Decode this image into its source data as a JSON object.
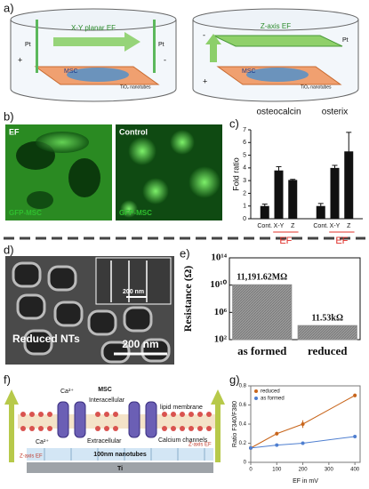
{
  "panel_labels": [
    "a)",
    "b)",
    "c)",
    "d)",
    "e)",
    "f)",
    "g)"
  ],
  "panel_a": {
    "left": {
      "title": "X-Y planar EF",
      "electrode_left": "Pt",
      "electrode_right": "Pt",
      "pole_left": "+",
      "pole_right": "-",
      "cells": "MSC",
      "substrate": "TiO₂ nanotubes"
    },
    "right": {
      "title": "Z-axis EF",
      "electrode": "Pt",
      "pole_top": "-",
      "pole_bottom": "+",
      "cells": "MSC",
      "substrate": "TiO₂ nanotubes"
    }
  },
  "panel_b": {
    "images": [
      {
        "tag": "EF",
        "caption": "GFP-MSC"
      },
      {
        "tag": "Control",
        "caption": "GFP-MSC"
      }
    ]
  },
  "panel_d": {
    "label": "Reduced NTs",
    "scale": "200 nm",
    "inset_scale": "200 nm"
  },
  "panel_f": {
    "cell": "MSC",
    "ion_top": "Ca²⁺",
    "ion_bottom": "Ca²⁺",
    "inside": "Interacellular",
    "membrane": "lipid membrane",
    "outside": "Extracellular",
    "channels": "Calcium channels",
    "tubes": "100nm nanotubes",
    "metal": "Ti",
    "field_left": "Z-axis EF",
    "field_right": "Z-axis EF"
  },
  "chart_data": [
    {
      "type": "bar",
      "ylabel": "Fold ratio",
      "ylim": [
        0,
        7
      ],
      "yticks": [
        0,
        1,
        2,
        3,
        4,
        5,
        6,
        7
      ],
      "color": "#111111",
      "bracket_color": "#e0302a",
      "groups": [
        {
          "title": "osteocalcin",
          "categories": [
            "Cont.",
            "X-Y",
            "Z"
          ],
          "values": [
            1,
            3.8,
            3.05
          ],
          "errors": [
            0.15,
            0.3,
            0.05
          ],
          "bracket_label": "EF"
        },
        {
          "title": "osterix",
          "categories": [
            "Cont.",
            "X-Y",
            "Z"
          ],
          "values": [
            1,
            4.0,
            5.3
          ],
          "errors": [
            0.2,
            0.2,
            1.5
          ],
          "bracket_label": "EF"
        }
      ]
    },
    {
      "type": "bar",
      "ylabel": "Resistance (Ω)",
      "log_scale": true,
      "ylim": [
        100,
        100000000000000
      ],
      "yticks": [
        {
          "value": 100,
          "label": "10²"
        },
        {
          "value": 1000000,
          "label": "10⁶"
        },
        {
          "value": 10000000000,
          "label": "10¹⁰"
        },
        {
          "value": 100000000000000,
          "label": "10¹⁴"
        }
      ],
      "categories": [
        "as formed",
        "reduced"
      ],
      "values": [
        11191620000,
        11530
      ],
      "value_labels": [
        "11,191.62MΩ",
        "11.53kΩ"
      ],
      "color": "#8c8c8c"
    },
    {
      "type": "line",
      "xlabel": "EF in mV",
      "ylabel": "Ratio F340/F380",
      "x": [
        0,
        100,
        200,
        400
      ],
      "xlim": [
        0,
        420
      ],
      "xticks": [
        0,
        100,
        200,
        300,
        400
      ],
      "ylim": [
        0,
        0.8
      ],
      "yticks": [
        0,
        0.2,
        0.4,
        0.6,
        0.8
      ],
      "legend": "upper-left",
      "series": [
        {
          "name": "reduced",
          "color": "#c8651b",
          "values": [
            0.15,
            0.3,
            0.4,
            0.7
          ],
          "errors": [
            0.01,
            0.02,
            0.04,
            0.02
          ]
        },
        {
          "name": "as formed",
          "color": "#4f7fd0",
          "values": [
            0.15,
            0.18,
            0.2,
            0.27
          ],
          "errors": [
            0.01,
            0.01,
            0.01,
            0.01
          ]
        }
      ]
    }
  ]
}
